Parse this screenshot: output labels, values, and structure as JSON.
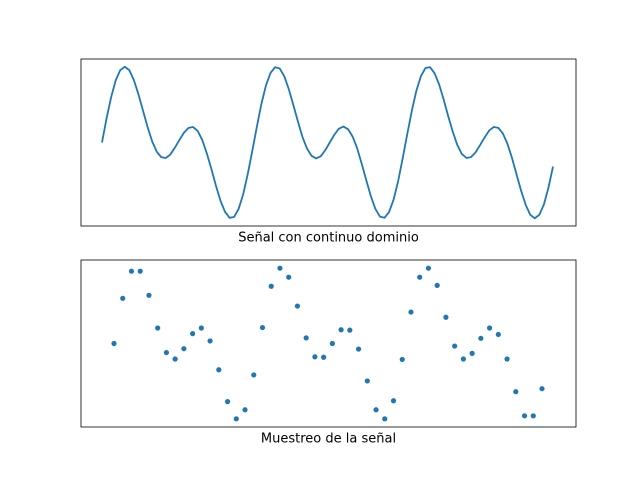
{
  "chart_data": [
    {
      "type": "line",
      "xlabel": "Señal con continuo dominio",
      "color": "#1f77b4",
      "ylim": [
        -1.94,
        1.94
      ],
      "values": [
        0,
        0.56,
        1.05,
        1.44,
        1.68,
        1.76,
        1.68,
        1.45,
        1.12,
        0.74,
        0.36,
        0.03,
        -0.21,
        -0.34,
        -0.36,
        -0.28,
        -0.12,
        0.06,
        0.23,
        0.34,
        0.36,
        0.27,
        0.06,
        -0.25,
        -0.61,
        -1.0,
        -1.35,
        -1.61,
        -1.75,
        -1.73,
        -1.54,
        -1.2,
        -0.73,
        -0.19,
        0.37,
        0.9,
        1.33,
        1.62,
        1.75,
        1.72,
        1.54,
        1.24,
        0.87,
        0.49,
        0.13,
        -0.14,
        -0.31,
        -0.37,
        -0.32,
        -0.18,
        0,
        0.18,
        0.32,
        0.37,
        0.31,
        0.14,
        -0.13,
        -0.49,
        -0.87,
        -1.24,
        -1.54,
        -1.72,
        -1.75,
        -1.62,
        -1.33,
        -0.9,
        -0.37,
        0.19,
        0.73,
        1.2,
        1.54,
        1.73,
        1.75,
        1.61,
        1.35,
        1.0,
        0.61,
        0.25,
        -0.06,
        -0.27,
        -0.36,
        -0.34,
        -0.23,
        -0.06,
        0.12,
        0.28,
        0.36,
        0.34,
        0.21,
        -0.03,
        -0.36,
        -0.74,
        -1.12,
        -1.45,
        -1.68,
        -1.76,
        -1.68,
        -1.44,
        -1.05,
        -0.56
      ]
    },
    {
      "type": "scatter",
      "xlabel": "Muestreo de la señal",
      "color": "#1f77b4",
      "ylim": [
        -1.94,
        1.94
      ],
      "values": [
        0,
        1.05,
        1.68,
        1.68,
        1.12,
        0.36,
        -0.21,
        -0.36,
        -0.12,
        0.23,
        0.36,
        0.06,
        -0.61,
        -1.35,
        -1.75,
        -1.54,
        -0.73,
        0.37,
        1.33,
        1.75,
        1.54,
        0.87,
        0.13,
        -0.31,
        -0.32,
        0,
        0.32,
        0.31,
        -0.13,
        -0.87,
        -1.54,
        -1.75,
        -1.33,
        -0.37,
        0.73,
        1.54,
        1.75,
        1.35,
        0.61,
        -0.06,
        -0.36,
        -0.23,
        0.12,
        0.36,
        0.21,
        -0.36,
        -1.12,
        -1.68,
        -1.68,
        -1.05
      ]
    }
  ]
}
